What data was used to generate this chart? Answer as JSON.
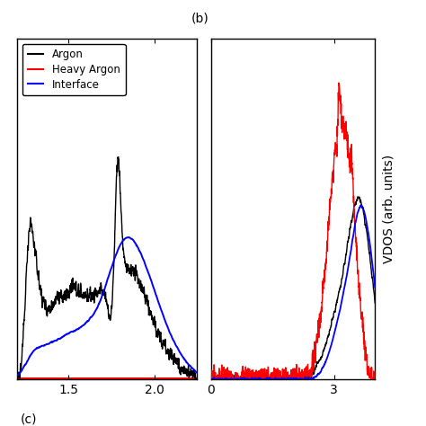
{
  "background_color": "#ffffff",
  "ylabel": "VDOS (arb. units)",
  "panel_b_label": "(b)",
  "panel_c_label": "(c)",
  "legend_labels": [
    "Argon",
    "Heavy Argon",
    "Interface"
  ],
  "legend_colors": [
    "#000000",
    "#ff0000",
    "#0000ff"
  ],
  "left_panel": {
    "xlim": [
      1.2,
      2.25
    ],
    "xticks": [
      1.5,
      2.0
    ],
    "ylim_scale": 1.15
  },
  "right_panel": {
    "xlim": [
      0,
      4.0
    ],
    "xticks": [
      0,
      3
    ],
    "ylim_scale": 1.15
  }
}
